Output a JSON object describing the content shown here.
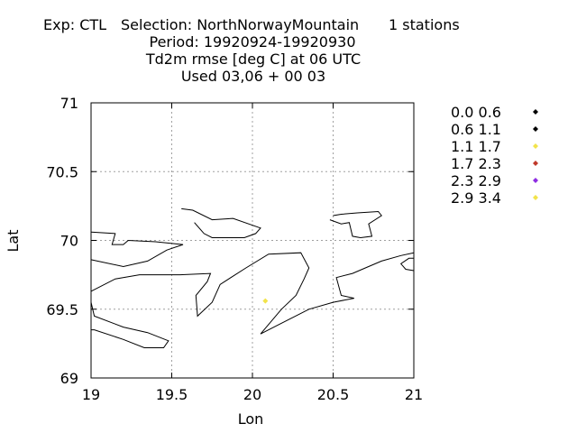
{
  "title": {
    "experiment": "Exp: CTL",
    "selection": "Selection: NorthNorwayMountain",
    "stations": "1 stations",
    "period": "Period: 19920924-19920930",
    "variable": "Td2m rmse [deg C] at  06 UTC",
    "used": "Used  03,06  + 00 03"
  },
  "chart_data": {
    "type": "scatter",
    "xlabel": "Lon",
    "ylabel": "Lat",
    "xlim": [
      19,
      21
    ],
    "ylim": [
      69,
      71
    ],
    "x_ticks": [
      "19",
      "19.5",
      "20",
      "20.5",
      "21"
    ],
    "y_ticks": [
      "69",
      "69.5",
      "70",
      "70.5",
      "71"
    ],
    "grid": true,
    "legend_position": "right",
    "legend": [
      {
        "label": "0.0 0.6",
        "color": "#000000"
      },
      {
        "label": "0.6 1.1",
        "color": "#000000"
      },
      {
        "label": "1.1 1.7",
        "color": "#f2e34b"
      },
      {
        "label": "1.7 2.3",
        "color": "#c0392b"
      },
      {
        "label": "2.3 2.9",
        "color": "#8e2de2"
      },
      {
        "label": "2.9 3.4",
        "color": "#f2e34b"
      }
    ],
    "points": [
      {
        "lon": 20.08,
        "lat": 69.56,
        "color": "#f2e34b"
      }
    ],
    "coastlines": [
      [
        [
          19.0,
          70.06
        ],
        [
          19.15,
          70.05
        ],
        [
          19.13,
          69.97
        ],
        [
          19.2,
          69.97
        ],
        [
          19.23,
          70.0
        ],
        [
          19.4,
          69.99
        ],
        [
          19.57,
          69.97
        ],
        [
          19.47,
          69.93
        ],
        [
          19.35,
          69.85
        ],
        [
          19.2,
          69.81
        ],
        [
          19.0,
          69.86
        ]
      ],
      [
        [
          19.0,
          69.63
        ],
        [
          19.15,
          69.72
        ],
        [
          19.3,
          69.75
        ],
        [
          19.55,
          69.75
        ],
        [
          19.74,
          69.76
        ],
        [
          19.72,
          69.7
        ],
        [
          19.65,
          69.6
        ],
        [
          19.66,
          69.45
        ],
        [
          19.75,
          69.55
        ],
        [
          19.8,
          69.68
        ],
        [
          19.96,
          69.8
        ],
        [
          20.1,
          69.9
        ],
        [
          20.3,
          69.91
        ],
        [
          20.35,
          69.8
        ],
        [
          20.32,
          69.72
        ],
        [
          20.27,
          69.6
        ],
        [
          20.18,
          69.5
        ],
        [
          20.05,
          69.32
        ],
        [
          20.15,
          69.38
        ],
        [
          20.25,
          69.44
        ],
        [
          20.35,
          69.5
        ],
        [
          20.5,
          69.55
        ],
        [
          20.63,
          69.58
        ],
        [
          20.55,
          69.6
        ],
        [
          20.52,
          69.73
        ],
        [
          20.62,
          69.76
        ],
        [
          20.7,
          69.8
        ],
        [
          20.8,
          69.85
        ],
        [
          20.92,
          69.89
        ],
        [
          21.0,
          69.91
        ]
      ],
      [
        [
          21.0,
          69.78
        ],
        [
          20.95,
          69.79
        ],
        [
          20.92,
          69.83
        ],
        [
          20.97,
          69.87
        ],
        [
          21.0,
          69.87
        ]
      ],
      [
        [
          19.0,
          69.55
        ],
        [
          19.02,
          69.45
        ],
        [
          19.2,
          69.37
        ],
        [
          19.35,
          69.33
        ],
        [
          19.48,
          69.27
        ],
        [
          19.45,
          69.22
        ],
        [
          19.33,
          69.22
        ],
        [
          19.2,
          69.28
        ],
        [
          19.02,
          69.35
        ],
        [
          19.0,
          69.35
        ]
      ],
      [
        [
          19.56,
          70.23
        ],
        [
          19.63,
          70.22
        ],
        [
          19.75,
          70.15
        ],
        [
          19.88,
          70.16
        ],
        [
          20.05,
          70.09
        ],
        [
          20.02,
          70.05
        ],
        [
          19.95,
          70.02
        ],
        [
          19.75,
          70.02
        ],
        [
          19.7,
          70.05
        ],
        [
          19.64,
          70.13
        ]
      ],
      [
        [
          20.48,
          70.15
        ],
        [
          20.55,
          70.12
        ],
        [
          20.6,
          70.13
        ],
        [
          20.62,
          70.03
        ],
        [
          20.67,
          70.02
        ],
        [
          20.74,
          70.03
        ],
        [
          20.72,
          70.12
        ],
        [
          20.8,
          70.18
        ],
        [
          20.78,
          70.21
        ],
        [
          20.65,
          70.2
        ],
        [
          20.55,
          70.19
        ],
        [
          20.5,
          70.18
        ]
      ]
    ]
  }
}
